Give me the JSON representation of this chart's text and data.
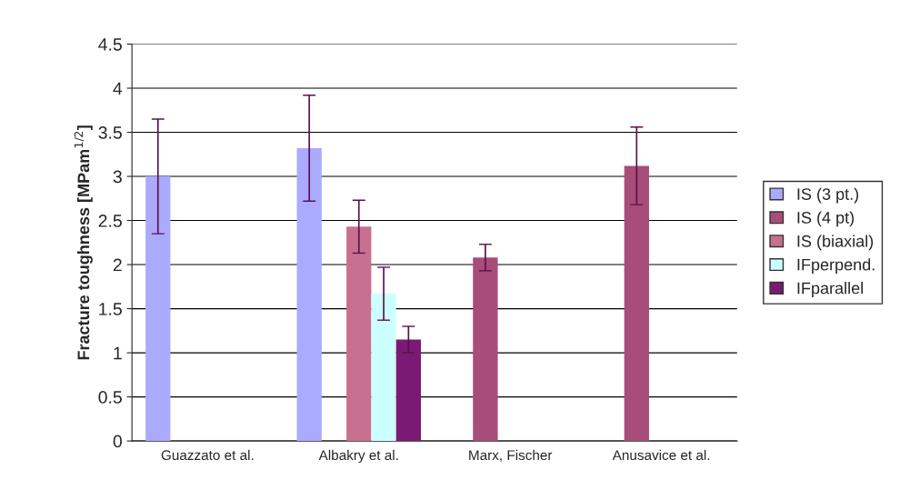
{
  "chart_data": {
    "type": "bar",
    "ylabel": "Fracture toughness [MPam$^{1/2}$]",
    "categories": [
      "Guazzato et al.",
      "Albakry et al.",
      "Marx, Fischer",
      "Anusavice et al."
    ],
    "series": [
      {
        "name": "IS (3 pt.)",
        "color": "#aaaaff",
        "values": [
          3.0,
          3.32,
          null,
          null
        ],
        "errors": [
          0.65,
          0.6,
          null,
          null
        ]
      },
      {
        "name": "IS (4 pt)",
        "color": "#a84c7a",
        "values": [
          null,
          null,
          2.08,
          3.12
        ],
        "errors": [
          null,
          null,
          0.15,
          0.44
        ]
      },
      {
        "name": "IS (biaxial)",
        "color": "#c8708f",
        "values": [
          null,
          2.43,
          null,
          null
        ],
        "errors": [
          null,
          0.3,
          null,
          null
        ]
      },
      {
        "name": "IFperpend.",
        "color": "#ccffff",
        "values": [
          null,
          1.67,
          null,
          null
        ],
        "errors": [
          null,
          0.3,
          null,
          null
        ]
      },
      {
        "name": "IFparallel",
        "color": "#7b1a74",
        "values": [
          null,
          1.15,
          null,
          null
        ],
        "errors": [
          null,
          0.15,
          null,
          null
        ]
      }
    ],
    "ylim": [
      0,
      4.5
    ],
    "yticks": [
      0,
      0.5,
      1,
      1.5,
      2,
      2.5,
      3,
      3.5,
      4,
      4.5
    ],
    "grid": "y",
    "legend": "right"
  }
}
